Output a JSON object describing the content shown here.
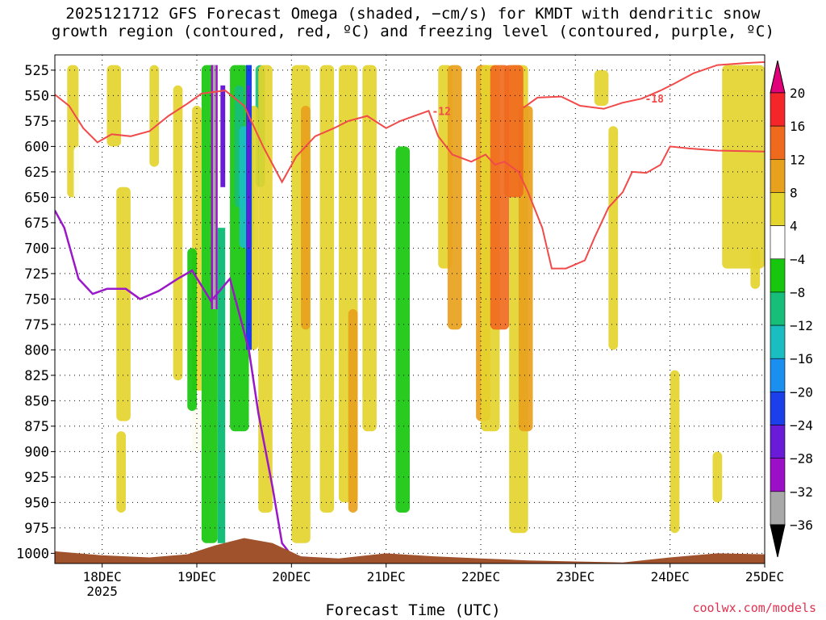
{
  "title": {
    "line1": "2025121712 GFS Forecast Omega (shaded, −cm/s) for KMDT with dendritic snow",
    "line2": "growth region (contoured, red, ºC) and freezing level (contoured, purple, ºC)"
  },
  "credit": "coolwx.com/models",
  "chart_data": {
    "type": "heatmap",
    "title": "2025121712 GFS Forecast Omega (shaded, −cm/s) for KMDT with dendritic snow growth region (contoured, red, ºC) and freezing level (contoured, purple, ºC)",
    "xlabel": "Forecast Time (UTC)",
    "x_ticks": [
      {
        "label": "18DEC",
        "sub": "2025",
        "day": 18
      },
      {
        "label": "19DEC",
        "sub": "",
        "day": 19
      },
      {
        "label": "20DEC",
        "sub": "",
        "day": 20
      },
      {
        "label": "21DEC",
        "sub": "",
        "day": 21
      },
      {
        "label": "22DEC",
        "sub": "",
        "day": 22
      },
      {
        "label": "23DEC",
        "sub": "",
        "day": 23
      },
      {
        "label": "24DEC",
        "sub": "",
        "day": 24
      },
      {
        "label": "25DEC",
        "sub": "",
        "day": 25
      }
    ],
    "xlim_days": [
      17.5,
      25.0
    ],
    "y_ticks": [
      525,
      550,
      575,
      600,
      625,
      650,
      675,
      700,
      725,
      750,
      775,
      800,
      825,
      850,
      875,
      900,
      925,
      950,
      975,
      1000
    ],
    "ylim_hpa": [
      1010,
      510
    ],
    "grid": "dotted",
    "colorbar": {
      "ticks": [
        20,
        16,
        12,
        8,
        4,
        -4,
        -8,
        -12,
        -16,
        -20,
        -24,
        -28,
        -32,
        -36
      ],
      "levels": [
        {
          "lo": 20,
          "hi": 24,
          "color": "#e0007a"
        },
        {
          "lo": 16,
          "hi": 20,
          "color": "#f5262a"
        },
        {
          "lo": 12,
          "hi": 16,
          "color": "#f06a1e"
        },
        {
          "lo": 8,
          "hi": 12,
          "color": "#e8a11c"
        },
        {
          "lo": 4,
          "hi": 8,
          "color": "#e4d42e"
        },
        {
          "lo": -4,
          "hi": 4,
          "color": "#ffffff"
        },
        {
          "lo": -8,
          "hi": -4,
          "color": "#17c70d"
        },
        {
          "lo": -12,
          "hi": -8,
          "color": "#17be7a"
        },
        {
          "lo": -16,
          "hi": -12,
          "color": "#1bbec0"
        },
        {
          "lo": -20,
          "hi": -16,
          "color": "#1b8ff0"
        },
        {
          "lo": -24,
          "hi": -20,
          "color": "#1b3fe8"
        },
        {
          "lo": -28,
          "hi": -24,
          "color": "#6a1bd8"
        },
        {
          "lo": -32,
          "hi": -28,
          "color": "#9b10c6"
        },
        {
          "lo": -36,
          "hi": -32,
          "color": "#a8a8a8"
        },
        {
          "lo": -40,
          "hi": -36,
          "color": "#000000"
        }
      ]
    },
    "series": [
      {
        "contour": -12,
        "color": "#f04a4a",
        "points": [
          [
            17.5,
            549
          ],
          [
            17.65,
            560
          ],
          [
            17.8,
            582
          ],
          [
            17.95,
            596
          ],
          [
            18.1,
            588
          ],
          [
            18.3,
            590
          ],
          [
            18.5,
            585
          ],
          [
            18.7,
            570
          ],
          [
            18.9,
            558
          ],
          [
            19.05,
            548
          ],
          [
            19.3,
            545
          ],
          [
            19.5,
            560
          ],
          [
            19.7,
            600
          ],
          [
            19.9,
            635
          ],
          [
            20.05,
            610
          ],
          [
            20.25,
            590
          ],
          [
            20.45,
            582
          ],
          [
            20.6,
            575
          ],
          [
            20.8,
            570
          ],
          [
            21.0,
            582
          ],
          [
            21.15,
            575
          ],
          [
            21.3,
            570
          ],
          [
            21.45,
            565
          ],
          [
            21.55,
            590
          ],
          [
            21.7,
            608
          ],
          [
            21.9,
            615
          ],
          [
            22.05,
            608
          ],
          [
            22.15,
            618
          ],
          [
            22.25,
            615
          ],
          [
            22.4,
            625
          ],
          [
            22.5,
            645
          ],
          [
            22.65,
            680
          ],
          [
            22.75,
            720
          ],
          [
            22.9,
            720
          ],
          [
            23.1,
            712
          ],
          [
            23.2,
            690
          ],
          [
            23.35,
            660
          ],
          [
            23.5,
            645
          ],
          [
            23.6,
            625
          ],
          [
            23.75,
            626
          ],
          [
            23.9,
            618
          ],
          [
            24.0,
            600
          ],
          [
            24.2,
            602
          ],
          [
            24.5,
            604
          ],
          [
            25.0,
            605
          ]
        ]
      },
      {
        "contour": -18,
        "color": "#f04a4a",
        "points": [
          [
            22.45,
            562
          ],
          [
            22.6,
            552
          ],
          [
            22.85,
            551
          ],
          [
            23.05,
            560
          ],
          [
            23.3,
            563
          ],
          [
            23.5,
            557
          ],
          [
            23.7,
            553
          ],
          [
            23.9,
            545
          ],
          [
            24.05,
            538
          ],
          [
            24.25,
            528
          ],
          [
            24.5,
            520
          ],
          [
            24.8,
            518
          ],
          [
            25.0,
            517
          ]
        ]
      }
    ],
    "freezing_level_0C": {
      "color": "#9a18c8",
      "points": [
        [
          17.5,
          663
        ],
        [
          17.6,
          680
        ],
        [
          17.75,
          730
        ],
        [
          17.9,
          745
        ],
        [
          18.05,
          740
        ],
        [
          18.25,
          740
        ],
        [
          18.4,
          750
        ],
        [
          18.6,
          742
        ],
        [
          18.8,
          730
        ],
        [
          18.95,
          722
        ],
        [
          19.15,
          752
        ],
        [
          19.35,
          730
        ],
        [
          19.55,
          800
        ],
        [
          19.65,
          862
        ],
        [
          19.8,
          935
        ],
        [
          19.9,
          990
        ],
        [
          20.0,
          1002
        ]
      ]
    }
  }
}
